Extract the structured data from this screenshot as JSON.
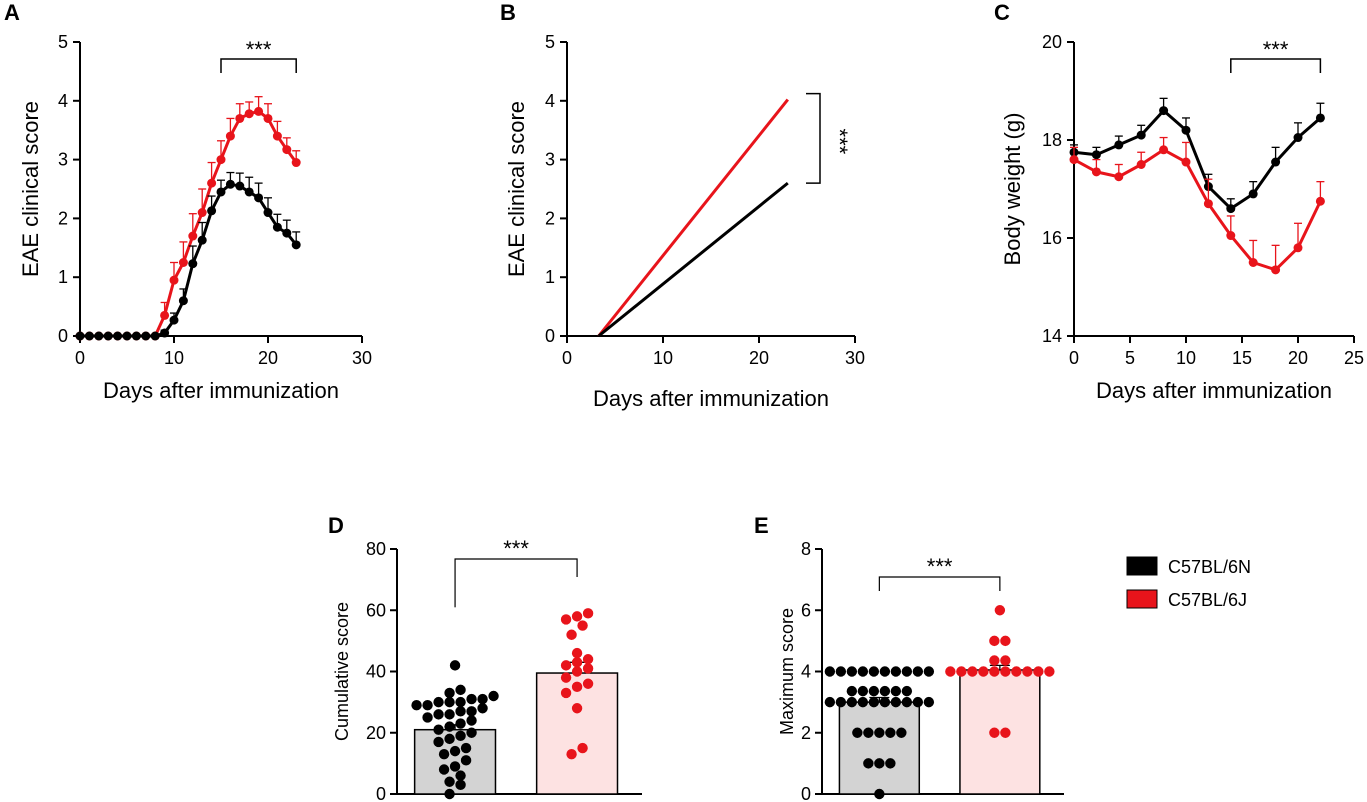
{
  "legend": {
    "items": [
      {
        "label": "C57BL/6N",
        "color": "#000000"
      },
      {
        "label": "C57BL/6J",
        "color": "#e8141b"
      }
    ]
  },
  "chart_data": [
    {
      "panel": "A",
      "type": "line",
      "xlabel": "Days after immunization",
      "ylabel": "EAE clinical score",
      "xlim": [
        0,
        30
      ],
      "ylim": [
        0,
        5
      ],
      "xticks": [
        0,
        10,
        20,
        30
      ],
      "yticks": [
        0,
        1,
        2,
        3,
        4,
        5
      ],
      "annotation": "***",
      "annotation_range": [
        15,
        23
      ],
      "series": [
        {
          "color": "#e8141b",
          "x": [
            0,
            1,
            2,
            3,
            4,
            5,
            6,
            7,
            8,
            9,
            10,
            11,
            12,
            13,
            14,
            15,
            16,
            17,
            18,
            19,
            20,
            21,
            22,
            23
          ],
          "y": [
            0,
            0,
            0,
            0,
            0,
            0,
            0,
            0,
            0,
            0.35,
            0.95,
            1.25,
            1.7,
            2.1,
            2.6,
            3.0,
            3.4,
            3.7,
            3.78,
            3.82,
            3.7,
            3.4,
            3.17,
            2.95
          ],
          "err": [
            0,
            0,
            0,
            0,
            0,
            0,
            0,
            0,
            0,
            0.22,
            0.3,
            0.35,
            0.38,
            0.4,
            0.35,
            0.32,
            0.3,
            0.25,
            0.2,
            0.25,
            0.25,
            0.25,
            0.2,
            0.2
          ]
        },
        {
          "color": "#000000",
          "x": [
            0,
            1,
            2,
            3,
            4,
            5,
            6,
            7,
            8,
            9,
            10,
            11,
            12,
            13,
            14,
            15,
            16,
            17,
            18,
            19,
            20,
            21,
            22,
            23
          ],
          "y": [
            0,
            0,
            0,
            0,
            0,
            0,
            0,
            0,
            0,
            0.05,
            0.27,
            0.6,
            1.23,
            1.63,
            2.13,
            2.45,
            2.58,
            2.55,
            2.45,
            2.35,
            2.1,
            1.85,
            1.75,
            1.55
          ],
          "err": [
            0,
            0,
            0,
            0,
            0,
            0,
            0,
            0,
            0,
            0.05,
            0.12,
            0.2,
            0.3,
            0.3,
            0.25,
            0.2,
            0.2,
            0.22,
            0.25,
            0.25,
            0.25,
            0.22,
            0.22,
            0.22
          ]
        }
      ]
    },
    {
      "panel": "B",
      "type": "line",
      "xlabel": "Days after immunization",
      "ylabel": "EAE clinical score",
      "xlim": [
        0,
        30
      ],
      "ylim": [
        0,
        5
      ],
      "xticks": [
        0,
        10,
        20,
        30
      ],
      "yticks": [
        0,
        1,
        2,
        3,
        4,
        5
      ],
      "annotation": "***",
      "annotation_range": [
        2.6,
        4.02
      ],
      "series": [
        {
          "color": "#e8141b",
          "x": [
            3.3,
            23
          ],
          "y": [
            0,
            4.02
          ]
        },
        {
          "color": "#000000",
          "x": [
            3.3,
            23
          ],
          "y": [
            0,
            2.6
          ]
        }
      ]
    },
    {
      "panel": "C",
      "type": "line",
      "xlabel": "Days after immunization",
      "ylabel": "Body weight (g)",
      "xlim": [
        0,
        25
      ],
      "ylim": [
        14,
        20
      ],
      "xticks": [
        0,
        5,
        10,
        15,
        20,
        25
      ],
      "yticks": [
        14,
        16,
        18,
        20
      ],
      "annotation": "***",
      "annotation_range": [
        14,
        22
      ],
      "series": [
        {
          "color": "#000000",
          "x": [
            0,
            2,
            4,
            6,
            8,
            10,
            12,
            14,
            16,
            18,
            20,
            22
          ],
          "y": [
            17.75,
            17.7,
            17.9,
            18.1,
            18.6,
            18.2,
            17.05,
            16.6,
            16.9,
            17.55,
            18.05,
            18.45
          ],
          "err": [
            0.15,
            0.15,
            0.18,
            0.2,
            0.25,
            0.25,
            0.25,
            0.2,
            0.25,
            0.3,
            0.3,
            0.3
          ]
        },
        {
          "color": "#e8141b",
          "x": [
            0,
            2,
            4,
            6,
            8,
            10,
            12,
            14,
            16,
            18,
            20,
            22
          ],
          "y": [
            17.6,
            17.35,
            17.25,
            17.5,
            17.8,
            17.55,
            16.7,
            16.05,
            15.5,
            15.35,
            15.8,
            16.75
          ],
          "err": [
            0.25,
            0.25,
            0.25,
            0.25,
            0.25,
            0.4,
            0.5,
            0.4,
            0.45,
            0.5,
            0.5,
            0.4
          ]
        }
      ]
    },
    {
      "panel": "D",
      "type": "bar",
      "ylabel": "Cumulative score",
      "ylim": [
        0,
        80
      ],
      "yticks": [
        0,
        20,
        40,
        60,
        80
      ],
      "annotation": "***",
      "bars": [
        {
          "color": "#d3d3d3",
          "dot_color": "#000000",
          "mean": 21,
          "sem": 1.6,
          "points": [
            0,
            3,
            4,
            6,
            8,
            9,
            11,
            13,
            14,
            15,
            17,
            18,
            19,
            20,
            21,
            22,
            23,
            24,
            25,
            26,
            26,
            27,
            27,
            28,
            29,
            29,
            30,
            30,
            30,
            31,
            31,
            32,
            33,
            34,
            42
          ]
        },
        {
          "color": "#fde2e2",
          "dot_color": "#e8141b",
          "mean": 39.5,
          "sem": 3.5,
          "points": [
            13,
            15,
            28,
            33,
            35,
            36,
            38,
            40,
            41,
            42,
            43,
            44,
            46,
            52,
            55,
            57,
            58,
            59
          ]
        }
      ]
    },
    {
      "panel": "E",
      "type": "bar",
      "ylabel": "Maximum score",
      "ylim": [
        0,
        8
      ],
      "yticks": [
        0,
        2,
        4,
        6,
        8
      ],
      "annotation": "***",
      "bars": [
        {
          "color": "#d3d3d3",
          "dot_color": "#000000",
          "mean": 3.0,
          "sem": 0.15,
          "points": [
            0,
            1,
            1,
            1,
            2,
            2,
            2,
            2,
            2,
            3,
            3,
            3,
            3,
            3,
            3,
            3,
            3,
            3,
            3,
            3,
            3,
            3,
            3,
            3,
            3,
            4,
            4,
            4,
            4,
            4,
            4,
            4,
            4,
            4,
            4
          ]
        },
        {
          "color": "#fde2e2",
          "dot_color": "#e8141b",
          "mean": 4.05,
          "sem": 0.15,
          "points": [
            2,
            2,
            4,
            4,
            4,
            4,
            4,
            4,
            4,
            4,
            4,
            4,
            4,
            4,
            5,
            5,
            6
          ]
        }
      ]
    }
  ]
}
